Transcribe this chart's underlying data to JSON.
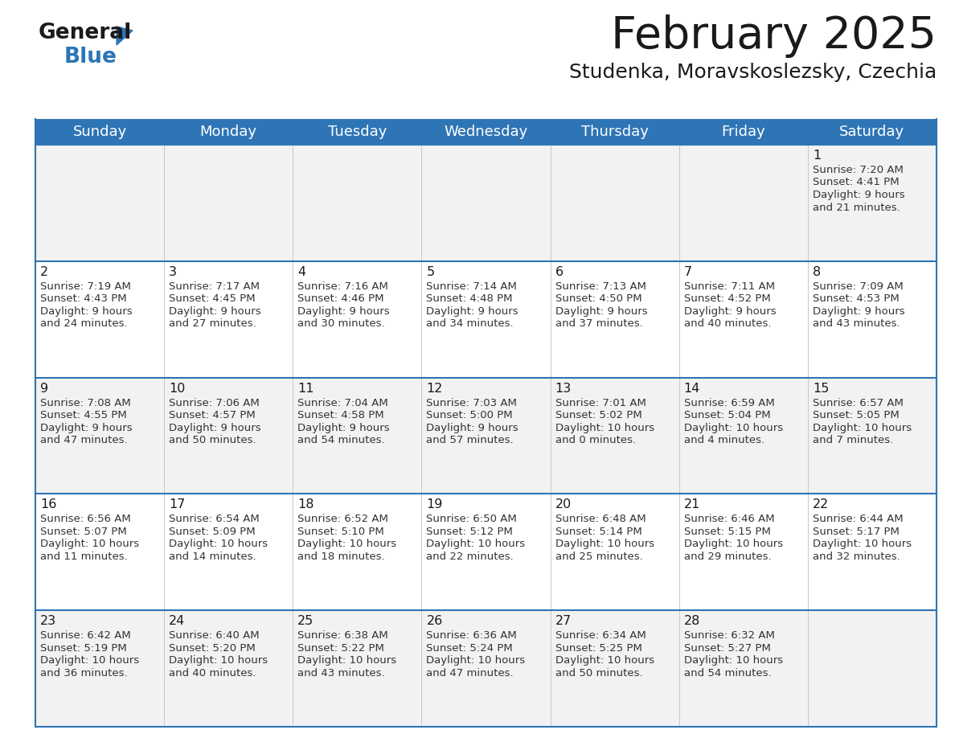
{
  "title": "February 2025",
  "subtitle": "Studenka, Moravskoslezsky, Czechia",
  "days_of_week": [
    "Sunday",
    "Monday",
    "Tuesday",
    "Wednesday",
    "Thursday",
    "Friday",
    "Saturday"
  ],
  "header_bg": "#2e75b6",
  "separator_color": "#2e75b6",
  "row_bg_odd": "#f2f2f2",
  "row_bg_even": "#ffffff",
  "calendar_data": [
    [
      null,
      null,
      null,
      null,
      null,
      null,
      {
        "day": "1",
        "sunrise": "7:20 AM",
        "sunset": "4:41 PM",
        "daylight_h": "9 hours",
        "daylight_m": "and 21 minutes."
      }
    ],
    [
      {
        "day": "2",
        "sunrise": "7:19 AM",
        "sunset": "4:43 PM",
        "daylight_h": "9 hours",
        "daylight_m": "and 24 minutes."
      },
      {
        "day": "3",
        "sunrise": "7:17 AM",
        "sunset": "4:45 PM",
        "daylight_h": "9 hours",
        "daylight_m": "and 27 minutes."
      },
      {
        "day": "4",
        "sunrise": "7:16 AM",
        "sunset": "4:46 PM",
        "daylight_h": "9 hours",
        "daylight_m": "and 30 minutes."
      },
      {
        "day": "5",
        "sunrise": "7:14 AM",
        "sunset": "4:48 PM",
        "daylight_h": "9 hours",
        "daylight_m": "and 34 minutes."
      },
      {
        "day": "6",
        "sunrise": "7:13 AM",
        "sunset": "4:50 PM",
        "daylight_h": "9 hours",
        "daylight_m": "and 37 minutes."
      },
      {
        "day": "7",
        "sunrise": "7:11 AM",
        "sunset": "4:52 PM",
        "daylight_h": "9 hours",
        "daylight_m": "and 40 minutes."
      },
      {
        "day": "8",
        "sunrise": "7:09 AM",
        "sunset": "4:53 PM",
        "daylight_h": "9 hours",
        "daylight_m": "and 43 minutes."
      }
    ],
    [
      {
        "day": "9",
        "sunrise": "7:08 AM",
        "sunset": "4:55 PM",
        "daylight_h": "9 hours",
        "daylight_m": "and 47 minutes."
      },
      {
        "day": "10",
        "sunrise": "7:06 AM",
        "sunset": "4:57 PM",
        "daylight_h": "9 hours",
        "daylight_m": "and 50 minutes."
      },
      {
        "day": "11",
        "sunrise": "7:04 AM",
        "sunset": "4:58 PM",
        "daylight_h": "9 hours",
        "daylight_m": "and 54 minutes."
      },
      {
        "day": "12",
        "sunrise": "7:03 AM",
        "sunset": "5:00 PM",
        "daylight_h": "9 hours",
        "daylight_m": "and 57 minutes."
      },
      {
        "day": "13",
        "sunrise": "7:01 AM",
        "sunset": "5:02 PM",
        "daylight_h": "10 hours",
        "daylight_m": "and 0 minutes."
      },
      {
        "day": "14",
        "sunrise": "6:59 AM",
        "sunset": "5:04 PM",
        "daylight_h": "10 hours",
        "daylight_m": "and 4 minutes."
      },
      {
        "day": "15",
        "sunrise": "6:57 AM",
        "sunset": "5:05 PM",
        "daylight_h": "10 hours",
        "daylight_m": "and 7 minutes."
      }
    ],
    [
      {
        "day": "16",
        "sunrise": "6:56 AM",
        "sunset": "5:07 PM",
        "daylight_h": "10 hours",
        "daylight_m": "and 11 minutes."
      },
      {
        "day": "17",
        "sunrise": "6:54 AM",
        "sunset": "5:09 PM",
        "daylight_h": "10 hours",
        "daylight_m": "and 14 minutes."
      },
      {
        "day": "18",
        "sunrise": "6:52 AM",
        "sunset": "5:10 PM",
        "daylight_h": "10 hours",
        "daylight_m": "and 18 minutes."
      },
      {
        "day": "19",
        "sunrise": "6:50 AM",
        "sunset": "5:12 PM",
        "daylight_h": "10 hours",
        "daylight_m": "and 22 minutes."
      },
      {
        "day": "20",
        "sunrise": "6:48 AM",
        "sunset": "5:14 PM",
        "daylight_h": "10 hours",
        "daylight_m": "and 25 minutes."
      },
      {
        "day": "21",
        "sunrise": "6:46 AM",
        "sunset": "5:15 PM",
        "daylight_h": "10 hours",
        "daylight_m": "and 29 minutes."
      },
      {
        "day": "22",
        "sunrise": "6:44 AM",
        "sunset": "5:17 PM",
        "daylight_h": "10 hours",
        "daylight_m": "and 32 minutes."
      }
    ],
    [
      {
        "day": "23",
        "sunrise": "6:42 AM",
        "sunset": "5:19 PM",
        "daylight_h": "10 hours",
        "daylight_m": "and 36 minutes."
      },
      {
        "day": "24",
        "sunrise": "6:40 AM",
        "sunset": "5:20 PM",
        "daylight_h": "10 hours",
        "daylight_m": "and 40 minutes."
      },
      {
        "day": "25",
        "sunrise": "6:38 AM",
        "sunset": "5:22 PM",
        "daylight_h": "10 hours",
        "daylight_m": "and 43 minutes."
      },
      {
        "day": "26",
        "sunrise": "6:36 AM",
        "sunset": "5:24 PM",
        "daylight_h": "10 hours",
        "daylight_m": "and 47 minutes."
      },
      {
        "day": "27",
        "sunrise": "6:34 AM",
        "sunset": "5:25 PM",
        "daylight_h": "10 hours",
        "daylight_m": "and 50 minutes."
      },
      {
        "day": "28",
        "sunrise": "6:32 AM",
        "sunset": "5:27 PM",
        "daylight_h": "10 hours",
        "daylight_m": "and 54 minutes."
      },
      null
    ]
  ]
}
